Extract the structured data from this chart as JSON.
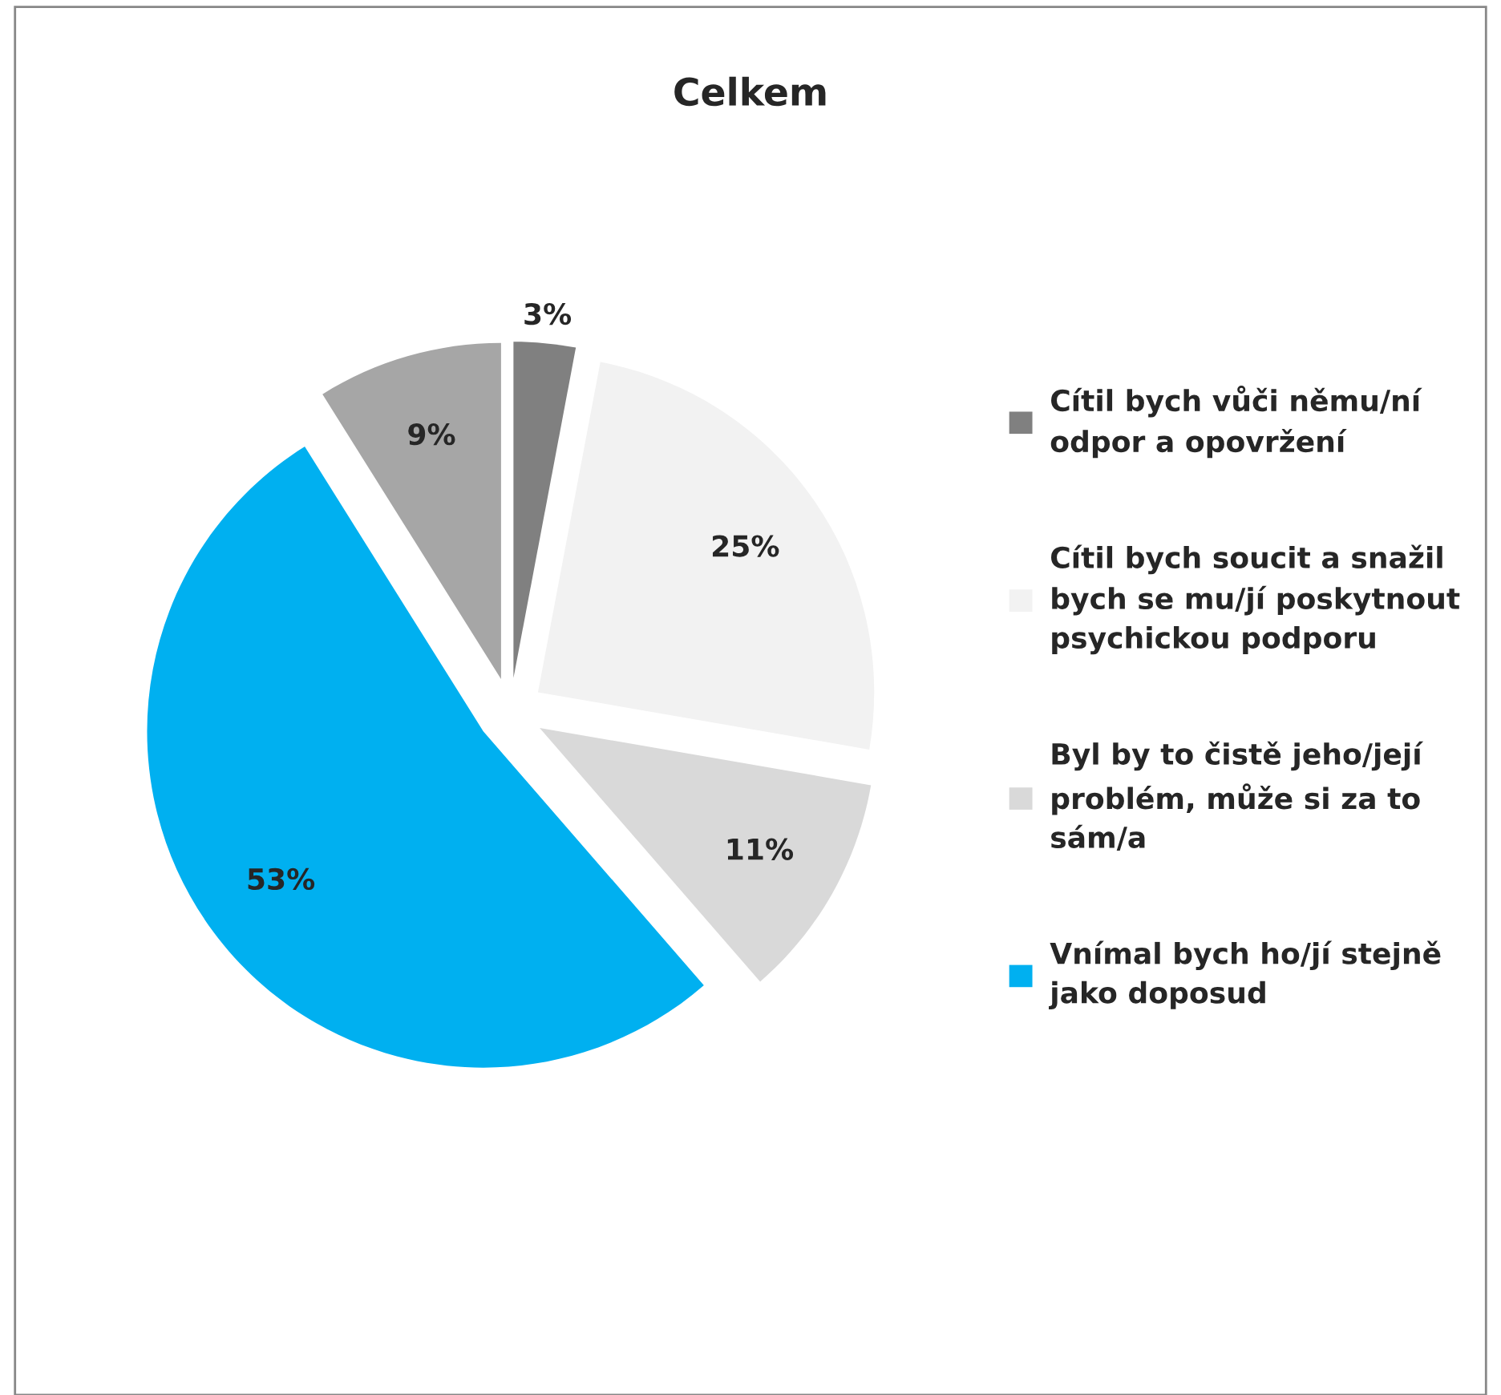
{
  "chart_data": {
    "type": "pie",
    "title": "Celkem",
    "categories": [
      "Cítil bych vůči němu/ní odpor a opovržení",
      "Cítil bych soucit a snažil bych se mu/jí poskytnout psychickou podporu",
      "Byl by to čistě jeho/její problém, může si za to sám/a",
      "Vnímal bych ho/jí stejně jako doposud",
      null
    ],
    "values": [
      3,
      25,
      11,
      53,
      9
    ],
    "colors": [
      "#808080",
      "#f2f2f2",
      "#d9d9d9",
      "#00b0f0",
      "#a6a6a6"
    ],
    "value_labels": [
      "3%",
      "25%",
      "11%",
      "53%",
      "9%"
    ],
    "legend": "right"
  }
}
